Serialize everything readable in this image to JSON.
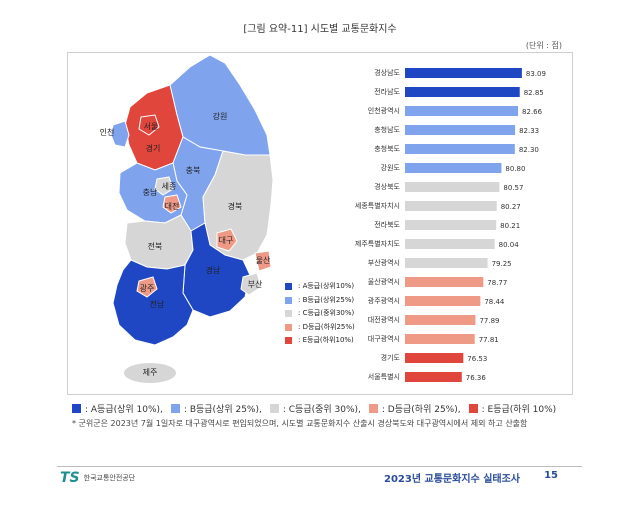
{
  "figure": {
    "title": "[그림 요약-11] 시도별 교통문화지수",
    "unit": "(단위 : 점)"
  },
  "colors": {
    "A": "#1f47c4",
    "B": "#7fa3ec",
    "C": "#d6d6d6",
    "D": "#ee9a86",
    "E": "#e0463c"
  },
  "map_labels": {
    "seoul": "서울",
    "incheon": "인천",
    "gyeonggi": "경기",
    "gangwon": "강원",
    "chungbuk": "충북",
    "chungnam": "충남",
    "sejong": "세종",
    "daejeon": "대전",
    "gyeongbuk": "경북",
    "jeonbuk": "전북",
    "daegu": "대구",
    "ulsan": "울산",
    "gyeongnam": "경남",
    "busan": "부산",
    "gwangju": "광주",
    "jeonnam": "전남",
    "jeju": "제주"
  },
  "map_legend": [
    {
      "label": ": A등급(상위10%)",
      "grade": "A"
    },
    {
      "label": ": B등급(상위25%)",
      "grade": "B"
    },
    {
      "label": ": C등급(중위30%)",
      "grade": "C"
    },
    {
      "label": ": D등급(하위25%)",
      "grade": "D"
    },
    {
      "label": ": E등급(하위10%)",
      "grade": "E"
    }
  ],
  "bottom_legend": [
    {
      "label": ": A등급(상위 10%),",
      "grade": "A"
    },
    {
      "label": ": B등급(상위 25%),",
      "grade": "B"
    },
    {
      "label": ": C등급(중위 30%),",
      "grade": "C"
    },
    {
      "label": ": D등급(하위 25%),",
      "grade": "D"
    },
    {
      "label": ": E등급(하위 10%)",
      "grade": "E"
    }
  ],
  "footnote": "* 군위군은 2023년 7월 1일자로 대구광역시로 편입되었으며, 시도별 교통문화지수 산출시 경상북도와 대구광역시에서 제외 하고 산출함",
  "footer": {
    "logo_mark": "TS",
    "logo_text": "한국교통안전공단",
    "title": "2023년 교통문화지수 실태조사",
    "page": "15"
  },
  "chart_data": {
    "type": "bar",
    "orientation": "horizontal",
    "title": "[그림 요약-11] 시도별 교통문화지수",
    "unit": "(단위 : 점)",
    "categories": [
      "경상남도",
      "전라남도",
      "인천광역시",
      "충청남도",
      "충청북도",
      "강원도",
      "경상북도",
      "세종특별자치시",
      "전라북도",
      "제주특별자치도",
      "부산광역시",
      "울산광역시",
      "광주광역시",
      "대전광역시",
      "대구광역시",
      "경기도",
      "서울특별시"
    ],
    "values": [
      83.09,
      82.85,
      82.66,
      82.33,
      82.3,
      80.8,
      80.57,
      80.27,
      80.21,
      80.04,
      79.25,
      78.77,
      78.44,
      77.89,
      77.81,
      76.53,
      76.36
    ],
    "value_labels": [
      "83.09",
      "82.85",
      "82.66",
      "82.33",
      "82.30",
      "80.80",
      "80.57",
      "80.27",
      "80.21",
      "80.04",
      "79.25",
      "78.77",
      "78.44",
      "77.89",
      "77.81",
      "76.53",
      "76.36"
    ],
    "grades": [
      "A",
      "A",
      "B",
      "B",
      "B",
      "B",
      "C",
      "C",
      "C",
      "C",
      "C",
      "D",
      "D",
      "D",
      "D",
      "E",
      "E"
    ],
    "xlim": [
      70,
      84
    ]
  }
}
